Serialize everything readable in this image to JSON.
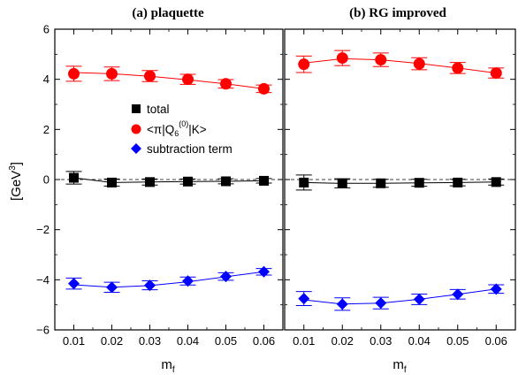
{
  "chart_data": {
    "type": "scatter",
    "ylabel": "[GeV",
    "ylabel_sup": "3",
    "ylabel_close": "]",
    "ylim": [
      -6,
      6
    ],
    "yticks": [
      "6",
      "4",
      "2",
      "0",
      "−2",
      "−4",
      "−6"
    ],
    "ytick_values": [
      6,
      4,
      2,
      0,
      -2,
      -4,
      -6
    ],
    "xlim": [
      0.005,
      0.065
    ],
    "reference_line": 0,
    "legend": {
      "placement": "upper-left of panel (a)",
      "items": [
        {
          "series": "total",
          "label": "total",
          "marker": "square",
          "color": "#000000"
        },
        {
          "series": "matrix",
          "label_parts": [
            "<π|Q",
            "6",
            "(0)",
            "|K>"
          ],
          "marker": "circle",
          "color": "#ff0000"
        },
        {
          "series": "subtraction",
          "label": "subtraction term",
          "marker": "diamond",
          "color": "#0000ff"
        }
      ]
    },
    "panels": [
      {
        "title": "(a)  plaquette",
        "xlabel": "m",
        "xlabel_sub": "f",
        "x": [
          0.01,
          0.02,
          0.03,
          0.04,
          0.05,
          0.06
        ],
        "xticks": [
          "0.01",
          "0.02",
          "0.03",
          "0.04",
          "0.05",
          "0.06"
        ],
        "series": [
          {
            "key": "matrix",
            "color": "#ff0000",
            "marker": "circle",
            "y": [
              4.22,
              4.22,
              4.13,
              4.0,
              3.82,
              3.62
            ],
            "err": [
              0.3,
              0.27,
              0.22,
              0.2,
              0.17,
              0.15
            ],
            "fit": [
              4.27,
              4.22,
              4.12,
              3.98,
              3.82,
              3.62
            ]
          },
          {
            "key": "total",
            "color": "#000000",
            "marker": "square",
            "y": [
              0.07,
              -0.12,
              -0.1,
              -0.08,
              -0.07,
              -0.05
            ],
            "err": [
              0.25,
              0.14,
              0.12,
              0.1,
              0.1,
              0.09
            ],
            "fit": [
              0.07,
              -0.12,
              -0.1,
              -0.08,
              -0.07,
              -0.05
            ]
          },
          {
            "key": "subtraction",
            "color": "#0000ff",
            "marker": "diamond",
            "y": [
              -4.15,
              -4.3,
              -4.22,
              -4.05,
              -3.87,
              -3.68
            ],
            "err": [
              0.22,
              0.2,
              0.18,
              0.16,
              0.15,
              0.13
            ],
            "fit": [
              -4.2,
              -4.3,
              -4.23,
              -4.08,
              -3.88,
              -3.68
            ]
          }
        ]
      },
      {
        "title": "(b) RG improved",
        "xlabel": "m",
        "xlabel_sub": "f",
        "x": [
          0.01,
          0.02,
          0.03,
          0.04,
          0.05,
          0.06
        ],
        "xticks": [
          "0.01",
          "0.02",
          "0.03",
          "0.04",
          "0.05",
          "0.06"
        ],
        "series": [
          {
            "key": "matrix",
            "color": "#ff0000",
            "marker": "circle",
            "y": [
              4.6,
              4.85,
              4.78,
              4.62,
              4.45,
              4.25
            ],
            "err": [
              0.33,
              0.3,
              0.27,
              0.24,
              0.22,
              0.2
            ],
            "fit": [
              4.65,
              4.82,
              4.78,
              4.63,
              4.45,
              4.25
            ]
          },
          {
            "key": "total",
            "color": "#000000",
            "marker": "square",
            "y": [
              -0.12,
              -0.15,
              -0.15,
              -0.13,
              -0.12,
              -0.1
            ],
            "err": [
              0.3,
              0.18,
              0.16,
              0.14,
              0.13,
              0.12
            ],
            "fit": [
              -0.12,
              -0.15,
              -0.15,
              -0.13,
              -0.12,
              -0.1
            ]
          },
          {
            "key": "subtraction",
            "color": "#0000ff",
            "marker": "diamond",
            "y": [
              -4.75,
              -4.97,
              -4.93,
              -4.78,
              -4.58,
              -4.37
            ],
            "err": [
              0.28,
              0.25,
              0.23,
              0.21,
              0.19,
              0.17
            ],
            "fit": [
              -4.8,
              -4.97,
              -4.93,
              -4.78,
              -4.58,
              -4.37
            ]
          }
        ]
      }
    ]
  }
}
